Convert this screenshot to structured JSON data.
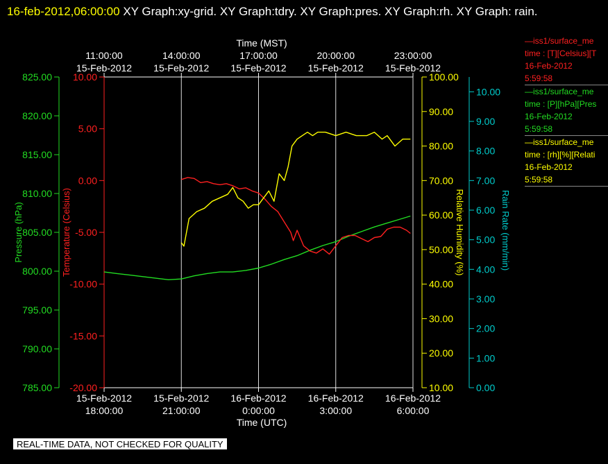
{
  "header": {
    "timestamp": "16-feb-2012,06:00:00",
    "titles": "XY Graph:xy-grid.  XY Graph:tdry.  XY Graph:pres.  XY Graph:rh.  XY Graph: rain."
  },
  "quality_note": "REAL-TIME DATA, NOT CHECKED FOR QUALITY",
  "legend": [
    {
      "line1": "—iss1/surface_me",
      "line2": "time : [T][Celsius][T",
      "line3": "16-Feb-2012",
      "line4": "5:59:58",
      "color": "#ff2020"
    },
    {
      "line1": "—iss1/surface_me",
      "line2": "time : [P][hPa][Pres",
      "line3": "16-Feb-2012",
      "line4": "5:59:58",
      "color": "#22dd22"
    },
    {
      "line1": "—iss1/surface_me",
      "line2": "time : [rh][%][Relati",
      "line3": "16-Feb-2012",
      "line4": "5:59:58",
      "color": "#ffff00"
    }
  ],
  "chart_data": {
    "type": "line",
    "x_domain_hours_utc": [
      0,
      12
    ],
    "top_axis": {
      "title": "Time (MST)",
      "ticks": [
        {
          "x": 0,
          "line1": "11:00:00",
          "line2": "15-Feb-2012"
        },
        {
          "x": 3,
          "line1": "14:00:00",
          "line2": "15-Feb-2012"
        },
        {
          "x": 6,
          "line1": "17:00:00",
          "line2": "15-Feb-2012"
        },
        {
          "x": 9,
          "line1": "20:00:00",
          "line2": "15-Feb-2012"
        },
        {
          "x": 12,
          "line1": "23:00:00",
          "line2": "15-Feb-2012"
        }
      ]
    },
    "bottom_axis": {
      "title": "Time (UTC)",
      "ticks": [
        {
          "x": 0,
          "line1": "15-Feb-2012",
          "line2": "18:00:00"
        },
        {
          "x": 3,
          "line1": "15-Feb-2012",
          "line2": "21:00:00"
        },
        {
          "x": 6,
          "line1": "16-Feb-2012",
          "line2": "0:00:00"
        },
        {
          "x": 9,
          "line1": "16-Feb-2012",
          "line2": "3:00:00"
        },
        {
          "x": 12,
          "line1": "16-Feb-2012",
          "line2": "6:00:00"
        }
      ]
    },
    "axes": {
      "pressure": {
        "title": "Pressure (hPa)",
        "range": [
          785,
          825
        ],
        "ticks": [
          "825.00",
          "820.00",
          "815.00",
          "810.00",
          "805.00",
          "800.00",
          "795.00",
          "790.00",
          "785.00"
        ],
        "tick_values": [
          825,
          820,
          815,
          810,
          805,
          800,
          795,
          790,
          785
        ],
        "color": "#22dd22"
      },
      "temperature": {
        "title": "Temperature (Celsius)",
        "range": [
          -20,
          10
        ],
        "ticks": [
          "10.00",
          "5.00",
          "0.00",
          "-5.00",
          "-10.00",
          "-15.00",
          "-20.00"
        ],
        "tick_values": [
          10,
          5,
          0,
          -5,
          -10,
          -15,
          -20
        ],
        "color": "#ff2020"
      },
      "humidity": {
        "title": "Relative Humidity (%)",
        "range": [
          10,
          100
        ],
        "ticks": [
          "100.00",
          "90.00",
          "80.00",
          "70.00",
          "60.00",
          "50.00",
          "40.00",
          "30.00",
          "20.00",
          "10.00"
        ],
        "tick_values": [
          100,
          90,
          80,
          70,
          60,
          50,
          40,
          30,
          20,
          10
        ],
        "color": "#ffff00"
      },
      "rain": {
        "title": "Rain Rate (mm/min)",
        "range": [
          0,
          10.5
        ],
        "ticks": [
          "10.00",
          "9.00",
          "8.00",
          "7.00",
          "6.00",
          "5.00",
          "4.00",
          "3.00",
          "2.00",
          "1.00",
          "0.00"
        ],
        "tick_values": [
          10,
          9,
          8,
          7,
          6,
          5,
          4,
          3,
          2,
          1,
          0
        ],
        "color": "#00cccc"
      }
    },
    "grid": "vertical",
    "series": [
      {
        "axis": "pressure",
        "color": "#22dd22",
        "x": [
          0,
          0.5,
          1,
          1.5,
          2,
          2.5,
          3,
          3.5,
          4,
          4.5,
          5,
          5.5,
          6,
          6.5,
          7,
          7.5,
          8,
          8.5,
          9,
          9.5,
          10,
          10.5,
          11,
          11.5,
          11.9
        ],
        "y": [
          799.9,
          799.7,
          799.5,
          799.3,
          799.1,
          798.9,
          799.0,
          799.4,
          799.7,
          799.9,
          799.9,
          800.1,
          800.4,
          800.9,
          801.5,
          802.0,
          802.7,
          803.3,
          803.8,
          804.5,
          805.1,
          805.7,
          806.2,
          806.7,
          807.1
        ]
      },
      {
        "axis": "temperature",
        "color": "#ff2020",
        "x": [
          3.0,
          3.25,
          3.5,
          3.75,
          4.0,
          4.25,
          4.5,
          4.75,
          5.0,
          5.25,
          5.5,
          5.75,
          6.0,
          6.25,
          6.5,
          6.75,
          7.0,
          7.25,
          7.35,
          7.5,
          7.75,
          8.0,
          8.25,
          8.5,
          8.75,
          9.0,
          9.25,
          9.5,
          9.75,
          10.0,
          10.25,
          10.5,
          10.75,
          11.0,
          11.25,
          11.5,
          11.75,
          11.9
        ],
        "y": [
          0.1,
          0.3,
          0.2,
          -0.2,
          -0.1,
          -0.3,
          -0.4,
          -0.3,
          -0.5,
          -0.8,
          -0.7,
          -1.0,
          -1.2,
          -1.8,
          -2.5,
          -3.0,
          -4.0,
          -5.0,
          -5.8,
          -4.8,
          -6.3,
          -6.8,
          -7.0,
          -6.6,
          -7.1,
          -6.3,
          -5.5,
          -5.3,
          -5.3,
          -5.6,
          -5.9,
          -5.5,
          -5.4,
          -4.7,
          -4.5,
          -4.5,
          -4.8,
          -5.1
        ]
      },
      {
        "axis": "humidity",
        "color": "#ffff00",
        "x": [
          3.0,
          3.1,
          3.3,
          3.6,
          3.9,
          4.2,
          4.5,
          4.8,
          5.0,
          5.2,
          5.4,
          5.6,
          5.8,
          6.0,
          6.2,
          6.4,
          6.6,
          6.8,
          7.0,
          7.15,
          7.3,
          7.5,
          7.7,
          7.9,
          8.1,
          8.3,
          8.6,
          9.0,
          9.4,
          9.8,
          10.2,
          10.5,
          10.8,
          11.0,
          11.3,
          11.6,
          11.9
        ],
        "y": [
          52,
          51,
          59,
          61,
          62,
          64,
          65,
          66,
          68,
          65,
          64,
          62,
          63,
          63,
          65,
          67,
          64,
          72,
          70,
          74,
          80,
          82,
          83,
          84,
          83,
          84,
          84,
          83,
          84,
          83,
          83,
          84,
          82,
          83,
          80,
          82,
          82
        ]
      },
      {
        "axis": "rain",
        "color": "#00cccc",
        "x": [],
        "y": []
      }
    ]
  }
}
